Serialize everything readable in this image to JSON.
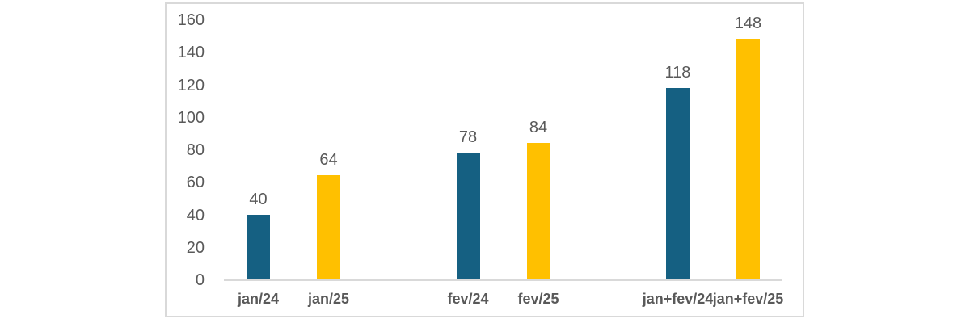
{
  "chart_data": {
    "type": "bar",
    "title": "",
    "xlabel": "",
    "ylabel": "",
    "categories": [
      "jan/24",
      "jan/25",
      "fev/24",
      "fev/25",
      "jan+fev/24",
      "jan+fev/25"
    ],
    "values": [
      40,
      64,
      78,
      84,
      118,
      148
    ],
    "bar_colors": [
      "#156082",
      "#FFC000",
      "#156082",
      "#FFC000",
      "#156082",
      "#FFC000"
    ],
    "groups": [
      {
        "bars": [
          {
            "category": "jan/24",
            "value": 40,
            "color": "#156082"
          },
          {
            "category": "jan/25",
            "value": 64,
            "color": "#FFC000"
          }
        ]
      },
      {
        "bars": [
          {
            "category": "fev/24",
            "value": 78,
            "color": "#156082"
          },
          {
            "category": "fev/25",
            "value": 84,
            "color": "#FFC000"
          }
        ]
      },
      {
        "bars": [
          {
            "category": "jan+fev/24",
            "value": 118,
            "color": "#156082"
          },
          {
            "category": "jan+fev/25",
            "value": 148,
            "color": "#FFC000"
          }
        ]
      }
    ],
    "yticks": [
      0,
      20,
      40,
      60,
      80,
      100,
      120,
      140,
      160
    ],
    "ylim": [
      0,
      160
    ],
    "grid": false,
    "legend_position": "none",
    "data_labels": true,
    "colors": {
      "series_blue": "#156082",
      "series_gold": "#FFC000",
      "axis_line": "#d9d9d9",
      "frame_border": "#d9d9d9",
      "label_text": "#595959",
      "background": "#ffffff"
    }
  }
}
